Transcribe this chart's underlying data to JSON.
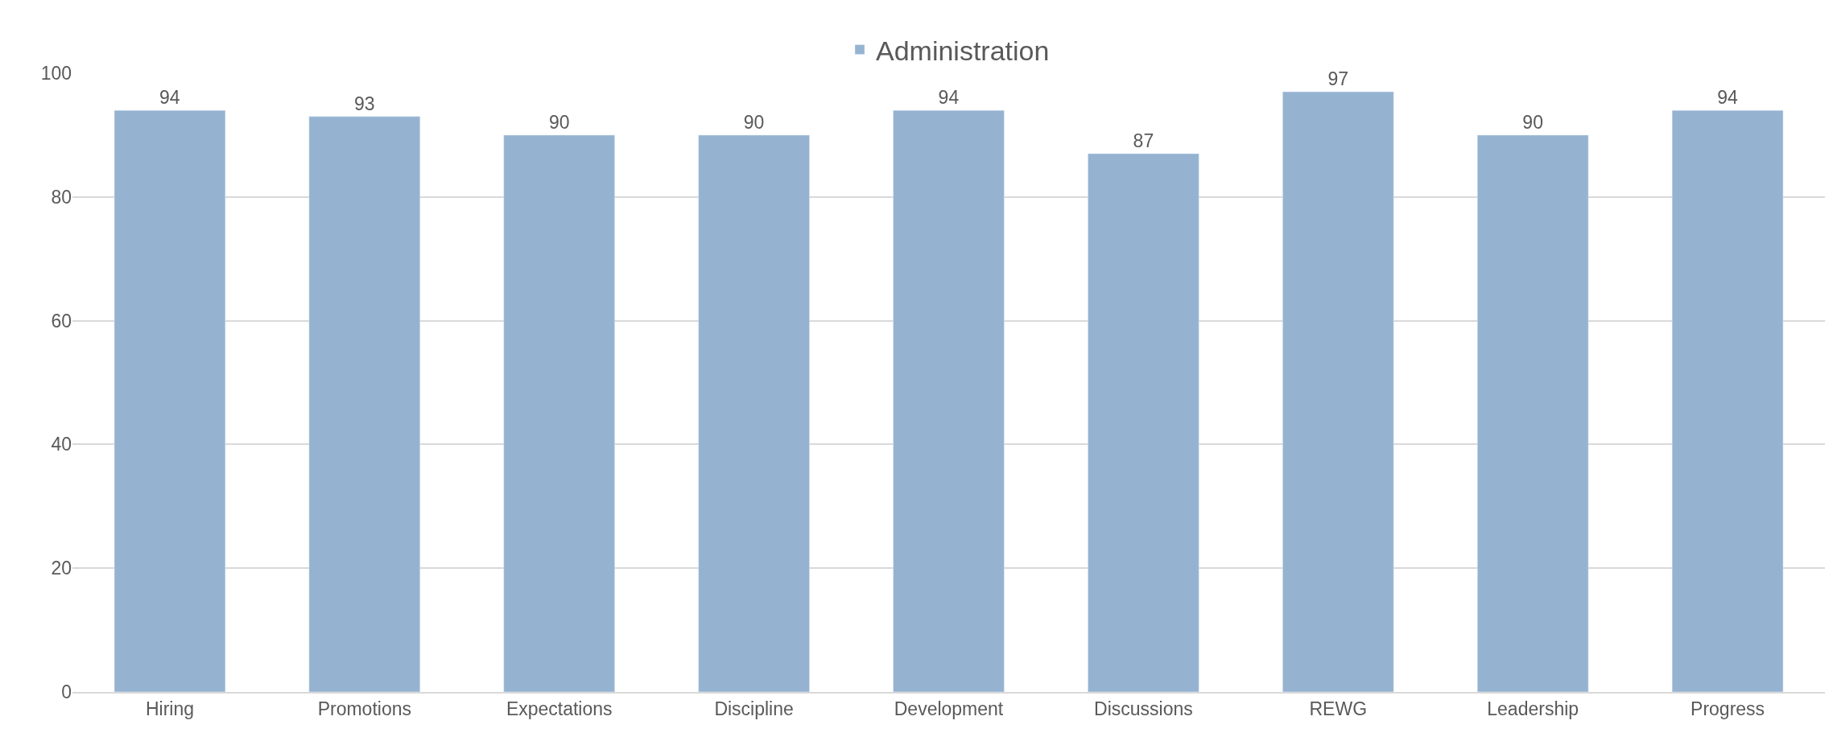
{
  "chart_data": {
    "type": "bar",
    "categories": [
      "Hiring",
      "Promotions",
      "Expectations",
      "Discipline",
      "Development",
      "Discussions",
      "REWG",
      "Leadership",
      "Progress"
    ],
    "series": [
      {
        "name": "Administration",
        "color": "#95b3d1",
        "values": [
          94,
          93,
          90,
          90,
          94,
          87,
          97,
          90,
          94
        ]
      }
    ],
    "ylim": [
      0,
      100
    ],
    "yticks": [
      0,
      20,
      40,
      60,
      80,
      100
    ],
    "grid": "y",
    "legend": "top",
    "data_labels": true
  }
}
